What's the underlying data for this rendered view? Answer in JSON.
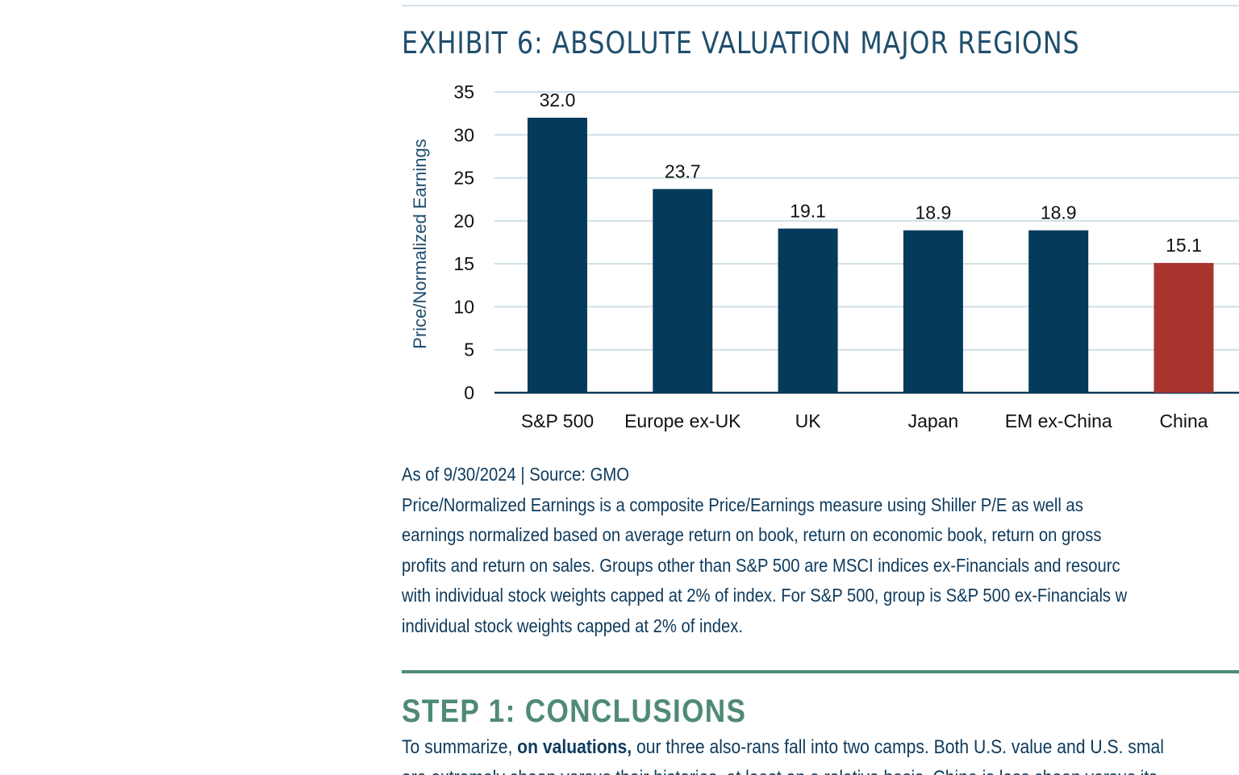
{
  "exhibit": {
    "title": "EXHIBIT 6: ABSOLUTE VALUATION MAJOR REGIONS"
  },
  "chart_data": {
    "type": "bar",
    "title": "EXHIBIT 6: ABSOLUTE VALUATION MAJOR REGIONS",
    "xlabel": "",
    "ylabel": "Price/Normalized Earnings",
    "categories": [
      "S&P 500",
      "Europe ex-UK",
      "UK",
      "Japan",
      "EM ex-China",
      "China"
    ],
    "values": [
      32.0,
      23.7,
      19.1,
      18.9,
      18.9,
      15.1
    ],
    "data_labels": [
      "32.0",
      "23.7",
      "19.1",
      "18.9",
      "18.9",
      "15.1"
    ],
    "ylim": [
      0,
      35
    ],
    "yticks": [
      0,
      5,
      10,
      15,
      20,
      25,
      30,
      35
    ],
    "grid": true,
    "legend": "none",
    "colors": {
      "default_bar": "#043a5a",
      "highlight_bar": "#a9342d",
      "gridline": "#cfdfe6",
      "axis": "#0e3a5c",
      "text": "#111111",
      "ylabel": "#1f4e6d"
    },
    "highlight_index": 5
  },
  "caption": {
    "source": "As of 9/30/2024 | Source: GMO",
    "lines": [
      "Price/Normalized Earnings is a composite Price/Earnings measure using Shiller P/E as well as",
      "earnings normalized based on average return on book, return on economic book, return on gross",
      "profits and return on sales. Groups other than S&P 500 are MSCI indices ex-Financials and resourc",
      "with individual stock weights capped at 2% of index. For S&P 500, group is S&P 500 ex-Financials w",
      "individual stock weights capped at 2% of index."
    ]
  },
  "section": {
    "title": "STEP 1: CONCLUSIONS"
  },
  "body": {
    "line1_before": "To summarize, ",
    "line1_bold": "on valuations,",
    "line1_after": " our three also-rans fall into two camps. Both U.S. value and U.S. smal",
    "line2": "are extremely cheap versus their histories, at least on a relative basis. China is less cheap versus its"
  }
}
